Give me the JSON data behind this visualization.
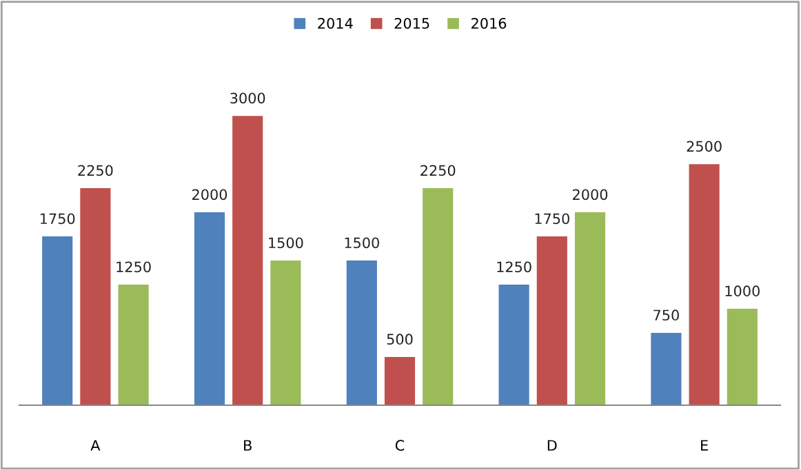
{
  "chart_data": {
    "type": "bar",
    "categories": [
      "A",
      "B",
      "C",
      "D",
      "E"
    ],
    "series": [
      {
        "name": "2014",
        "color": "#4f81bd",
        "values": [
          1750,
          2000,
          1500,
          1250,
          750
        ]
      },
      {
        "name": "2015",
        "color": "#c0504d",
        "values": [
          2250,
          3000,
          500,
          1750,
          2500
        ]
      },
      {
        "name": "2016",
        "color": "#9bbb59",
        "values": [
          1250,
          1500,
          2250,
          2000,
          1000
        ]
      }
    ],
    "data_labels": true,
    "grid": false,
    "legend": "top"
  }
}
